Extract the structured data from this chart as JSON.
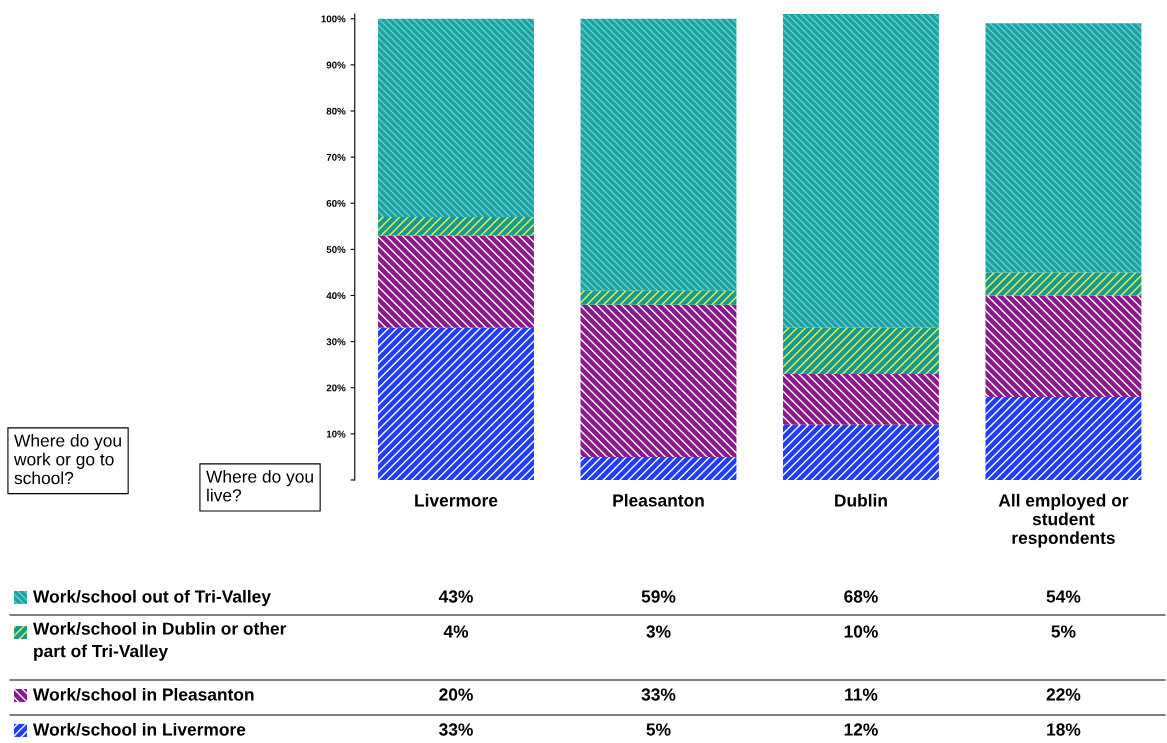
{
  "chart_data": {
    "type": "bar",
    "stacked": true,
    "categories": [
      "Livermore",
      "Pleasanton",
      "Dublin",
      "All employed or\nstudent\nrespondents"
    ],
    "series": [
      {
        "name": "Work/school in Livermore",
        "color": "#1f3cff",
        "values": [
          33,
          5,
          12,
          18
        ],
        "value_labels": [
          "33%",
          "5%",
          "12%",
          "18%"
        ]
      },
      {
        "name": "Work/school in Pleasanton",
        "color": "#8a1a8a",
        "values": [
          20,
          33,
          11,
          22
        ],
        "value_labels": [
          "20%",
          "33%",
          "11%",
          "22%"
        ]
      },
      {
        "name": "Work/school in Dublin or other\npart of Tri-Valley",
        "color": "#1a9a8a",
        "values": [
          4,
          3,
          10,
          5
        ],
        "value_labels": [
          "4%",
          "3%",
          "10%",
          "5%"
        ]
      },
      {
        "name": "Work/school out of Tri-Valley",
        "color": "#1fa0a0",
        "values": [
          43,
          59,
          68,
          54
        ],
        "value_labels": [
          "43%",
          "59%",
          "68%",
          "54%"
        ]
      }
    ],
    "ylim": [
      0,
      101
    ],
    "yticks": [
      {
        "value": 0,
        "label": null
      },
      {
        "value": 10,
        "label": "10%"
      },
      {
        "value": 20,
        "label": "20%"
      },
      {
        "value": 30,
        "label": "30%"
      },
      {
        "value": 40,
        "label": "40%"
      },
      {
        "value": 50,
        "label": "50%"
      },
      {
        "value": 60,
        "label": "60%"
      },
      {
        "value": 70,
        "label": "70%"
      },
      {
        "value": 80,
        "label": "80%"
      },
      {
        "value": 90,
        "label": "90%"
      },
      {
        "value": 100,
        "label": "100%"
      }
    ],
    "legend": "bottom",
    "grid": false,
    "annotations": [
      "Where do you\nwork or go to\nschool?",
      "Where do you\nlive?"
    ]
  }
}
